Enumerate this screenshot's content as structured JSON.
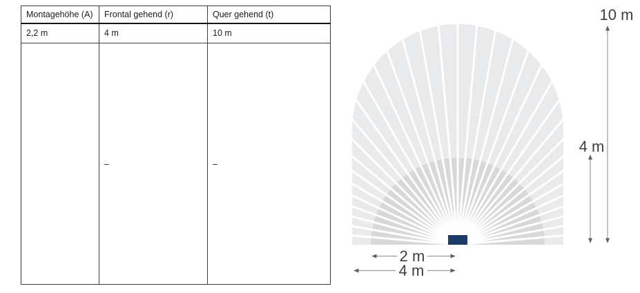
{
  "table": {
    "headers": [
      "Montagehöhe (A)",
      "Frontal gehend (r)",
      "Quer gehend (t)"
    ],
    "rows": [
      [
        "2,2 m",
        "4 m",
        "10 m"
      ],
      [
        "",
        "–",
        "–"
      ]
    ]
  },
  "diagram": {
    "labels": {
      "reach_total_vertical": "10 m",
      "reach_inner_vertical": "4 m",
      "radius_inner_horizontal": "2 m",
      "radius_outer_horizontal": "4 m"
    },
    "colors": {
      "fan_outer": "#e9eaeb",
      "fan_inner": "#d7d8da",
      "sensor": "#1c3c67",
      "arrow_line": "#9a9a9a",
      "arrow_head": "#5f5f5f",
      "label_text": "#3f3f3f"
    },
    "rays": {
      "step_deg": 5,
      "start_deg": 5,
      "end_deg": 175
    }
  }
}
